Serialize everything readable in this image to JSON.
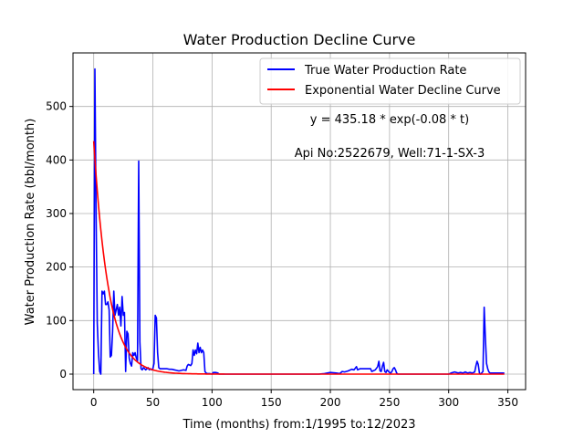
{
  "chart_data": {
    "type": "line",
    "title": "Water Production Decline Curve",
    "xlabel": "Time (months) from:1/1995 to:12/2023",
    "ylabel": "Water Production Rate (bbl/month)",
    "xlim": [
      -17.5,
      365
    ],
    "ylim": [
      -29,
      600
    ],
    "xticks": [
      0,
      50,
      100,
      150,
      200,
      250,
      300,
      350
    ],
    "yticks": [
      0,
      100,
      200,
      300,
      400,
      500
    ],
    "grid": true,
    "legend": "top-right",
    "annotations": [
      "y = 435.18 * exp(-0.08 * t)",
      "Api No:2522679, Well:71-1-SX-3"
    ],
    "series": [
      {
        "name": "True Water Production Rate",
        "color": "#0000ff",
        "points": [
          [
            0,
            0
          ],
          [
            1,
            570
          ],
          [
            2,
            300
          ],
          [
            3,
            95
          ],
          [
            4,
            40
          ],
          [
            5,
            5
          ],
          [
            6,
            0
          ],
          [
            7,
            155
          ],
          [
            8,
            150
          ],
          [
            9,
            155
          ],
          [
            10,
            130
          ],
          [
            11,
            130
          ],
          [
            12,
            135
          ],
          [
            13,
            120
          ],
          [
            14,
            32
          ],
          [
            15,
            35
          ],
          [
            16,
            80
          ],
          [
            17,
            155
          ],
          [
            18,
            110
          ],
          [
            19,
            120
          ],
          [
            20,
            130
          ],
          [
            21,
            110
          ],
          [
            22,
            125
          ],
          [
            23,
            90
          ],
          [
            24,
            145
          ],
          [
            25,
            110
          ],
          [
            26,
            115
          ],
          [
            27,
            5
          ],
          [
            28,
            80
          ],
          [
            29,
            75
          ],
          [
            30,
            30
          ],
          [
            31,
            20
          ],
          [
            32,
            15
          ],
          [
            33,
            40
          ],
          [
            34,
            35
          ],
          [
            35,
            40
          ],
          [
            36,
            30
          ],
          [
            37,
            25
          ],
          [
            38,
            398
          ],
          [
            39,
            60
          ],
          [
            40,
            10
          ],
          [
            41,
            8
          ],
          [
            42,
            12
          ],
          [
            43,
            10
          ],
          [
            44,
            8
          ],
          [
            45,
            10
          ],
          [
            46,
            12
          ],
          [
            47,
            8
          ],
          [
            48,
            10
          ],
          [
            49,
            8
          ],
          [
            50,
            10
          ],
          [
            51,
            20
          ],
          [
            52,
            110
          ],
          [
            53,
            105
          ],
          [
            54,
            40
          ],
          [
            55,
            12
          ],
          [
            56,
            10
          ],
          [
            57,
            10
          ],
          [
            58,
            10
          ],
          [
            60,
            10
          ],
          [
            62,
            10
          ],
          [
            64,
            9
          ],
          [
            66,
            9
          ],
          [
            68,
            8
          ],
          [
            70,
            7
          ],
          [
            72,
            6
          ],
          [
            74,
            7
          ],
          [
            76,
            8
          ],
          [
            78,
            7
          ],
          [
            79,
            15
          ],
          [
            80,
            18
          ],
          [
            82,
            16
          ],
          [
            83,
            20
          ],
          [
            84,
            45
          ],
          [
            85,
            35
          ],
          [
            86,
            45
          ],
          [
            87,
            38
          ],
          [
            88,
            58
          ],
          [
            89,
            40
          ],
          [
            90,
            50
          ],
          [
            91,
            40
          ],
          [
            92,
            45
          ],
          [
            93,
            40
          ],
          [
            94,
            5
          ],
          [
            95,
            2
          ],
          [
            96,
            1
          ],
          [
            98,
            1
          ],
          [
            100,
            0
          ],
          [
            101,
            3
          ],
          [
            103,
            3
          ],
          [
            105,
            2
          ],
          [
            106,
            0
          ],
          [
            110,
            0
          ],
          [
            150,
            0
          ],
          [
            190,
            0
          ],
          [
            195,
            1
          ],
          [
            200,
            3
          ],
          [
            205,
            2
          ],
          [
            208,
            1
          ],
          [
            210,
            5
          ],
          [
            212,
            4
          ],
          [
            215,
            6
          ],
          [
            218,
            9
          ],
          [
            220,
            8
          ],
          [
            222,
            14
          ],
          [
            223,
            8
          ],
          [
            225,
            10
          ],
          [
            228,
            10
          ],
          [
            230,
            10
          ],
          [
            232,
            10
          ],
          [
            234,
            10
          ],
          [
            235,
            5
          ],
          [
            238,
            8
          ],
          [
            240,
            14
          ],
          [
            241,
            24
          ],
          [
            242,
            6
          ],
          [
            243,
            5
          ],
          [
            244,
            15
          ],
          [
            245,
            22
          ],
          [
            246,
            5
          ],
          [
            247,
            3
          ],
          [
            248,
            8
          ],
          [
            250,
            3
          ],
          [
            251,
            2
          ],
          [
            252,
            5
          ],
          [
            253,
            10
          ],
          [
            254,
            12
          ],
          [
            255,
            8
          ],
          [
            256,
            2
          ],
          [
            257,
            0
          ],
          [
            260,
            0
          ],
          [
            300,
            0
          ],
          [
            302,
            2
          ],
          [
            305,
            4
          ],
          [
            308,
            2
          ],
          [
            310,
            3
          ],
          [
            312,
            2
          ],
          [
            314,
            4
          ],
          [
            316,
            2
          ],
          [
            318,
            3
          ],
          [
            320,
            2
          ],
          [
            322,
            4
          ],
          [
            323,
            15
          ],
          [
            324,
            24
          ],
          [
            325,
            18
          ],
          [
            326,
            2
          ],
          [
            327,
            0
          ],
          [
            329,
            5
          ],
          [
            330,
            125
          ],
          [
            331,
            68
          ],
          [
            332,
            20
          ],
          [
            333,
            10
          ],
          [
            334,
            4
          ],
          [
            335,
            2
          ],
          [
            340,
            2
          ],
          [
            345,
            2
          ],
          [
            347,
            2
          ]
        ]
      },
      {
        "name": "Exponential Water Decline Curve",
        "color": "#ff0000",
        "function": {
          "a": 435.18,
          "b": 0.08,
          "x_from": 0,
          "x_to": 347
        }
      }
    ]
  }
}
